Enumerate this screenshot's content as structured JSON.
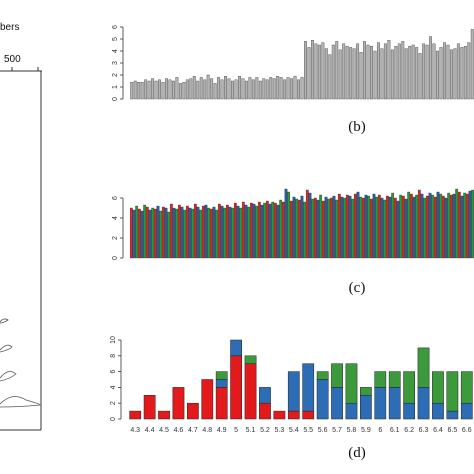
{
  "left_panel": {
    "title_fragment": "bers",
    "axis_tick": "500"
  },
  "chart_data": [
    {
      "id": "b",
      "caption": "(b)",
      "type": "bar",
      "ylim": [
        0,
        6
      ],
      "yticks": [
        "0",
        "1",
        "2",
        "3",
        "4",
        "5",
        "6"
      ],
      "bar_color": "#b3b3b3",
      "values": [
        1.4,
        1.5,
        1.4,
        1.4,
        1.6,
        1.5,
        1.7,
        1.5,
        1.6,
        1.4,
        1.7,
        1.6,
        1.5,
        1.8,
        1.3,
        1.4,
        1.6,
        1.7,
        1.9,
        1.5,
        1.8,
        1.6,
        2.0,
        1.7,
        1.3,
        1.8,
        1.6,
        1.9,
        1.7,
        1.5,
        1.6,
        1.9,
        1.7,
        1.5,
        1.8,
        1.6,
        1.8,
        1.5,
        1.7,
        1.6,
        1.8,
        1.7,
        1.9,
        1.8,
        1.6,
        1.8,
        1.7,
        1.9,
        1.6,
        1.8,
        4.8,
        4.3,
        4.9,
        4.6,
        4.5,
        4.7,
        4.2,
        3.7,
        4.5,
        4.8,
        4.1,
        4.6,
        4.4,
        4.3,
        4.2,
        4.6,
        3.9,
        4.8,
        4.5,
        4.4,
        4.0,
        4.7,
        4.2,
        4.6,
        4.9,
        4.1,
        4.4,
        4.6,
        4.8,
        4.2,
        4.4,
        4.5,
        4.3,
        3.8,
        4.6,
        4.5,
        5.2,
        4.6,
        4.0,
        4.3,
        4.7,
        4.5,
        4.1,
        4.2,
        4.6,
        4.3,
        4.4,
        4.7,
        5.8
      ]
    },
    {
      "id": "c",
      "caption": "(c)",
      "type": "bar",
      "ylim": [
        0,
        6
      ],
      "yticks": [
        "0",
        "2",
        "4",
        "6"
      ],
      "colors": [
        "#d62728",
        "#1f5fa8",
        "#2e9a2e"
      ],
      "values": [
        5.0,
        4.8,
        5.2,
        4.9,
        4.7,
        5.3,
        5.1,
        4.8,
        5.0,
        4.9,
        5.2,
        4.7,
        5.1,
        5.0,
        4.6,
        5.4,
        5.0,
        4.9,
        5.3,
        5.1,
        4.8,
        5.2,
        5.0,
        4.9,
        5.4,
        5.1,
        4.8,
        5.2,
        5.3,
        5.0,
        4.9,
        5.1,
        4.8,
        5.4,
        5.2,
        5.0,
        5.3,
        5.1,
        5.0,
        5.5,
        5.2,
        5.0,
        5.6,
        5.3,
        5.1,
        5.5,
        5.4,
        5.2,
        5.6,
        5.3,
        5.5,
        5.7,
        5.4,
        5.6,
        5.5,
        5.3,
        5.8,
        5.6,
        6.9,
        6.6,
        5.7,
        6.1,
        5.9,
        5.8,
        6.2,
        5.6,
        6.8,
        6.5,
        5.9,
        6.0,
        5.8,
        6.3,
        5.7,
        6.1,
        5.9,
        6.0,
        6.2,
        5.8,
        6.4,
        6.1,
        6.0,
        6.3,
        6.2,
        5.9,
        6.4,
        6.6,
        6.1,
        6.0,
        6.3,
        6.2,
        5.9,
        6.4,
        6.1,
        6.3,
        6.0,
        5.8,
        6.2,
        6.1,
        6.5,
        6.0,
        5.7,
        6.3,
        6.2,
        5.9,
        6.6,
        6.4,
        6.1,
        6.3,
        6.8,
        6.4,
        6.0,
        6.2,
        6.5,
        6.3,
        6.1,
        6.6,
        6.4,
        6.2,
        6.0,
        6.5,
        6.3,
        6.4,
        6.9,
        6.6,
        6.2,
        6.5,
        6.4,
        6.7,
        6.8
      ]
    },
    {
      "id": "d",
      "caption": "(d)",
      "type": "bar",
      "stacked": true,
      "ylim": [
        0,
        10
      ],
      "yticks": [
        "0",
        "2",
        "4",
        "6",
        "8",
        "10"
      ],
      "categories": [
        "4.3",
        "4.4",
        "4.5",
        "4.6",
        "4.7",
        "4.8",
        "4.9",
        "5",
        "5.1",
        "5.2",
        "5.3",
        "5.4",
        "5.5",
        "5.6",
        "5.7",
        "5.8",
        "5.9",
        "6",
        "6.1",
        "6.2",
        "6.3",
        "6.4",
        "6.5",
        "6.6"
      ],
      "series": [
        {
          "color": "#e31a1c",
          "values": [
            1,
            3,
            1,
            4,
            2,
            5,
            4,
            8,
            7,
            2,
            1,
            1,
            1,
            0,
            0,
            0,
            0,
            0,
            0,
            0,
            0,
            0,
            0,
            0
          ]
        },
        {
          "color": "#2d6db5",
          "values": [
            0,
            0,
            0,
            0,
            0,
            0,
            1,
            2,
            0,
            2,
            0,
            5,
            6,
            5,
            4,
            2,
            3,
            4,
            4,
            2,
            4,
            2,
            1,
            2
          ]
        },
        {
          "color": "#3c9a3c",
          "values": [
            0,
            0,
            0,
            0,
            0,
            0,
            1,
            0,
            1,
            0,
            0,
            0,
            0,
            1,
            3,
            5,
            1,
            2,
            2,
            4,
            5,
            4,
            5,
            4
          ]
        }
      ]
    }
  ]
}
